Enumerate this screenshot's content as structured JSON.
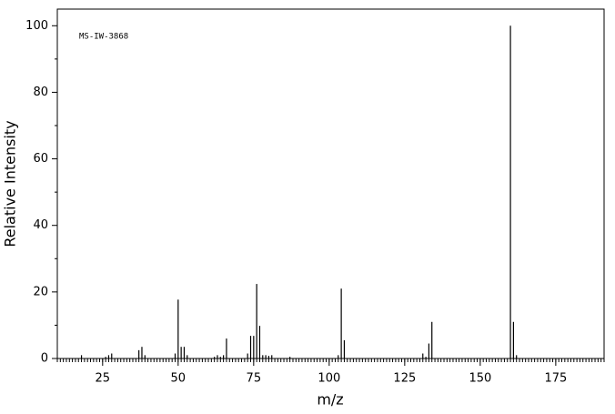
{
  "chart_data": {
    "type": "stem",
    "annotation": "MS-IW-3868",
    "x_label": "m/z",
    "y_label": "Relative Intensity",
    "x": [
      18,
      26,
      27,
      28,
      37,
      38,
      39,
      49,
      50,
      51,
      52,
      53,
      62,
      63,
      64,
      65,
      66,
      73,
      74,
      75,
      76,
      77,
      78,
      79,
      80,
      81,
      87,
      103,
      104,
      105,
      131,
      132,
      133,
      134,
      160,
      161,
      162
    ],
    "values": [
      1,
      0.5,
      1,
      1.5,
      2.5,
      3.5,
      1,
      1.5,
      17.7,
      3.5,
      3.5,
      1,
      0.5,
      1,
      0.5,
      1,
      6,
      1.5,
      6.8,
      6.8,
      22.4,
      9.8,
      1,
      1,
      0.8,
      1,
      0.5,
      1,
      21,
      5.5,
      1.5,
      0.5,
      4.5,
      11,
      100,
      11,
      1
    ],
    "color": "#000000",
    "xlim": [
      10,
      191
    ],
    "xticks": [
      25,
      50,
      75,
      100,
      125,
      150,
      175
    ],
    "ylim": [
      0,
      105
    ],
    "yticks": [
      0,
      20,
      40,
      60,
      80,
      100
    ]
  }
}
